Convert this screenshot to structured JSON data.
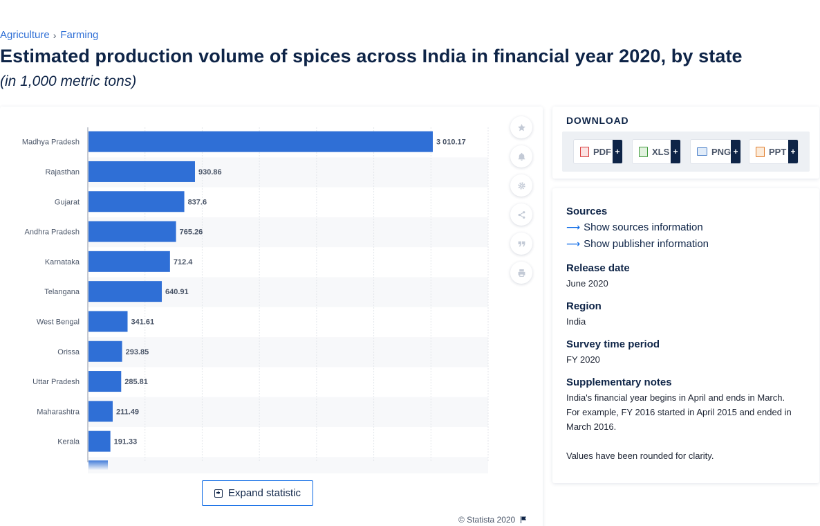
{
  "breadcrumb": {
    "item1": "Agriculture",
    "separator": "›",
    "item2": "Farming"
  },
  "title": "Estimated production volume of spices across India in financial year 2020, by state",
  "subtitle": "(in 1,000 metric tons)",
  "chart_data": {
    "type": "bar",
    "orientation": "horizontal",
    "categories": [
      "Madhya Pradesh",
      "Rajasthan",
      "Gujarat",
      "Andhra Pradesh",
      "Karnataka",
      "Telangana",
      "West Bengal",
      "Orissa",
      "Uttar Pradesh",
      "Maharashtra",
      "Kerala"
    ],
    "values": [
      3010.17,
      930.86,
      837.6,
      765.26,
      712.4,
      640.91,
      341.61,
      293.85,
      285.81,
      211.49,
      191.33
    ],
    "value_labels": [
      "3 010.17",
      "930.86",
      "837.6",
      "765.26",
      "712.4",
      "640.91",
      "341.61",
      "293.85",
      "285.81",
      "211.49",
      "191.33"
    ],
    "xlim": [
      0,
      3500
    ],
    "grid": true,
    "bar_color": "#2f6fd6",
    "truncated_more_rows": true
  },
  "toolbar": {
    "icons": [
      "star-icon",
      "bell-icon",
      "gear-icon",
      "share-icon",
      "quote-icon",
      "print-icon"
    ]
  },
  "expand_label": "Expand statistic",
  "copyright": "© Statista 2020",
  "download": {
    "title": "DOWNLOAD",
    "buttons": [
      {
        "label": "PDF",
        "plus": "+",
        "color": "#d93a3a"
      },
      {
        "label": "XLS",
        "plus": "+",
        "color": "#3f9a3c"
      },
      {
        "label": "PNG",
        "plus": "+",
        "color": "#4a7fc8"
      },
      {
        "label": "PPT",
        "plus": "+",
        "color": "#e07b2a"
      }
    ]
  },
  "info": {
    "sources_heading": "Sources",
    "show_sources": "Show sources information",
    "show_publisher": "Show publisher information",
    "release_heading": "Release date",
    "release_value": "June 2020",
    "region_heading": "Region",
    "region_value": "India",
    "survey_heading": "Survey time period",
    "survey_value": "FY 2020",
    "notes_heading": "Supplementary notes",
    "notes_text": "India's financial year begins in April and ends in March. For example, FY 2016 started in April 2015 and ended in March 2016.",
    "notes_text2": "Values have been rounded for clarity."
  },
  "colors": {
    "accent": "#0666e5",
    "navy": "#0e2447"
  }
}
